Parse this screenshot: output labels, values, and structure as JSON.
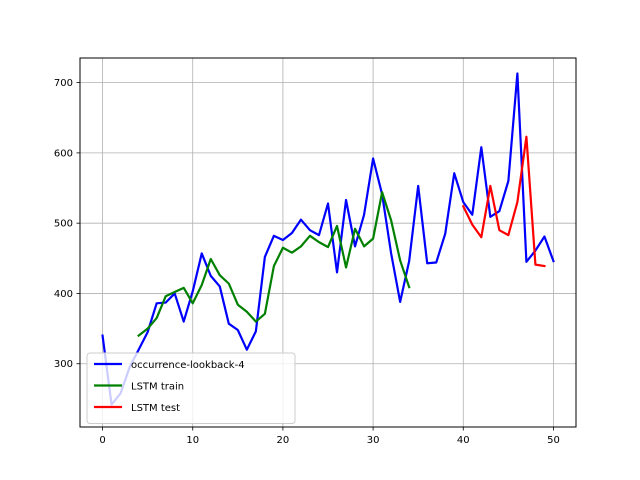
{
  "chart_data": {
    "type": "line",
    "title": "",
    "xlabel": "",
    "ylabel": "",
    "xlim": [
      -2.5,
      52.5
    ],
    "ylim": [
      210,
      735
    ],
    "xticks": [
      0,
      10,
      20,
      30,
      40,
      50
    ],
    "yticks": [
      300,
      400,
      500,
      600,
      700
    ],
    "grid": true,
    "legend_position": "lower-left",
    "series": [
      {
        "name": "occurrence-lookback-4",
        "color": "#0000ff",
        "x": [
          0,
          1,
          2,
          3,
          4,
          5,
          6,
          7,
          8,
          9,
          10,
          11,
          12,
          13,
          14,
          15,
          16,
          17,
          18,
          19,
          20,
          21,
          22,
          23,
          24,
          25,
          26,
          27,
          28,
          29,
          30,
          31,
          32,
          33,
          34,
          35,
          36,
          37,
          38,
          39,
          40,
          41,
          42,
          43,
          44,
          45,
          46,
          47,
          48,
          49,
          50
        ],
        "y": [
          340,
          242,
          258,
          295,
          320,
          345,
          386,
          387,
          400,
          360,
          403,
          457,
          425,
          410,
          357,
          348,
          320,
          346,
          452,
          482,
          476,
          486,
          505,
          490,
          483,
          528,
          430,
          533,
          467,
          512,
          592,
          541,
          457,
          388,
          446,
          553,
          443,
          444,
          485,
          571,
          530,
          512,
          608,
          509,
          517,
          560,
          713,
          445,
          461,
          481,
          446
        ]
      },
      {
        "name": "LSTM train",
        "color": "#008000",
        "x": [
          4,
          5,
          6,
          7,
          8,
          9,
          10,
          11,
          12,
          13,
          14,
          15,
          16,
          17,
          18,
          19,
          20,
          21,
          22,
          23,
          24,
          25,
          26,
          27,
          28,
          29,
          30,
          31,
          32,
          33,
          34
        ],
        "y": [
          340,
          350,
          365,
          396,
          402,
          408,
          386,
          412,
          449,
          426,
          414,
          384,
          374,
          360,
          371,
          439,
          465,
          458,
          467,
          482,
          473,
          466,
          496,
          437,
          492,
          467,
          478,
          544,
          504,
          447,
          409
        ]
      },
      {
        "name": "LSTM test",
        "color": "#ff0000",
        "x": [
          40,
          41,
          42,
          43,
          44,
          45,
          46,
          47,
          48,
          49
        ],
        "y": [
          524,
          498,
          480,
          553,
          490,
          483,
          530,
          623,
          441,
          439
        ]
      }
    ]
  }
}
